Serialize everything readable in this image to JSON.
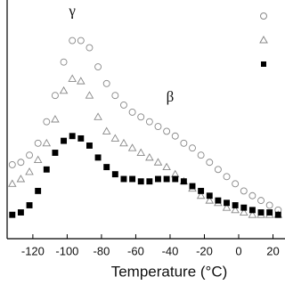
{
  "chart_data": {
    "type": "scatter",
    "xlabel": "Temperature (°C)",
    "x": [
      -132,
      -127,
      -122,
      -117,
      -112,
      -107,
      -102,
      -97,
      -92,
      -87,
      -82,
      -77,
      -72,
      -67,
      -62,
      -57,
      -52,
      -47,
      -42,
      -37,
      -32,
      -27,
      -22,
      -17,
      -12,
      -7,
      -2,
      3,
      8,
      13,
      18,
      23
    ],
    "series": [
      {
        "marker": "circle",
        "color": "#888888",
        "filled": false,
        "values": [
          3.1,
          3.2,
          3.5,
          4.0,
          4.9,
          6.0,
          7.4,
          8.3,
          8.3,
          8.0,
          7.2,
          6.5,
          6.0,
          5.6,
          5.3,
          5.1,
          4.9,
          4.7,
          4.5,
          4.3,
          4.0,
          3.8,
          3.5,
          3.2,
          2.9,
          2.6,
          2.3,
          2.0,
          1.8,
          1.6,
          1.4,
          1.2
        ]
      },
      {
        "marker": "triangle",
        "color": "#888888",
        "filled": false,
        "values": [
          2.3,
          2.5,
          2.8,
          3.3,
          4.0,
          5.0,
          6.2,
          6.7,
          6.6,
          6.0,
          5.1,
          4.5,
          4.2,
          4.0,
          3.8,
          3.6,
          3.4,
          3.2,
          3.0,
          2.7,
          2.4,
          2.1,
          1.8,
          1.6,
          1.5,
          1.3,
          1.2,
          1.1,
          1.0,
          1.0,
          1.0,
          1.0
        ]
      },
      {
        "marker": "square",
        "color": "#000000",
        "filled": true,
        "values": [
          1.0,
          1.1,
          1.4,
          2.0,
          2.9,
          3.6,
          4.1,
          4.3,
          4.2,
          3.9,
          3.4,
          3.0,
          2.7,
          2.5,
          2.5,
          2.4,
          2.4,
          2.5,
          2.5,
          2.5,
          2.4,
          2.2,
          2.0,
          1.8,
          1.6,
          1.5,
          1.4,
          1.3,
          1.2,
          1.1,
          1.1,
          1.0
        ]
      }
    ],
    "annotations": [
      {
        "text": "γ",
        "x": -97,
        "y": 9.5
      },
      {
        "text": "β",
        "x": -40,
        "y": 5.9
      }
    ],
    "xlim": [
      -135,
      27
    ],
    "ylim": [
      0,
      10
    ],
    "xticks": [
      -120,
      -100,
      -80,
      -60,
      -40,
      -20,
      0,
      20
    ]
  }
}
